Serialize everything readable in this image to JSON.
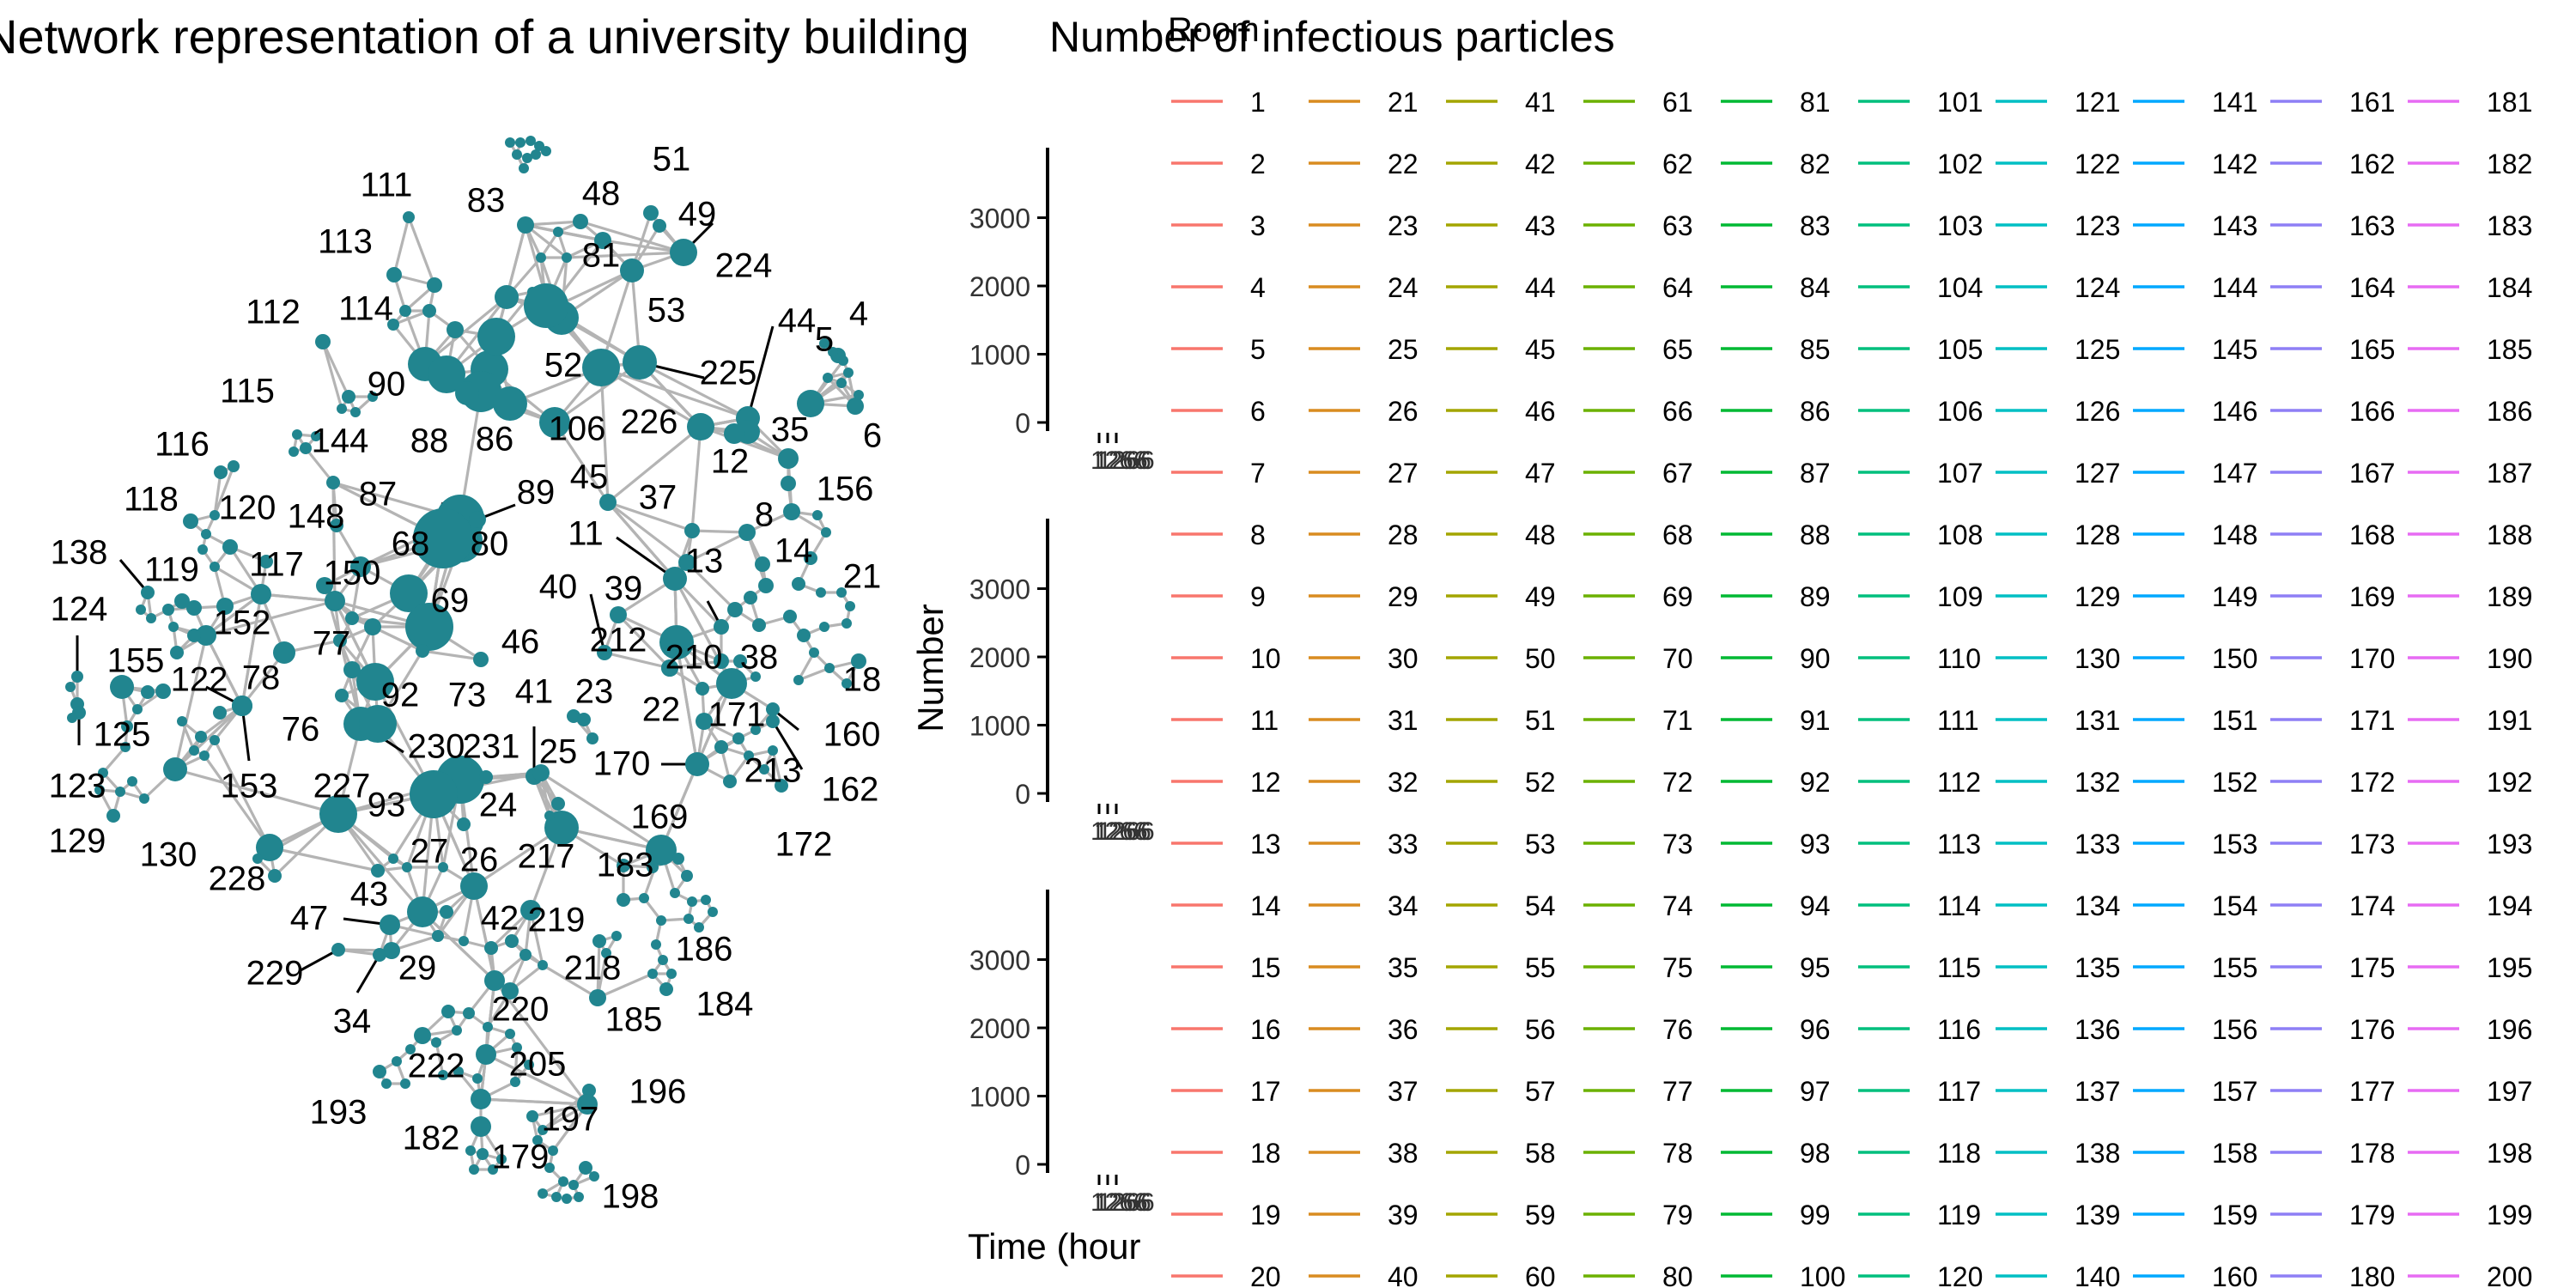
{
  "chart_data": [
    {
      "type": "network",
      "title": "Network representation of a university building",
      "node_color": "#21858F",
      "edge_color": "#B4B4B4",
      "labelled_nodes": [
        "111",
        "83",
        "48",
        "51",
        "49",
        "113",
        "81",
        "224",
        "53",
        "44",
        "4",
        "112",
        "114",
        "52",
        "225",
        "90",
        "5",
        "115",
        "226",
        "35",
        "6",
        "116",
        "144",
        "88",
        "86",
        "106",
        "12",
        "156",
        "118",
        "87",
        "89",
        "45",
        "37",
        "120",
        "148",
        "68",
        "80",
        "11",
        "8",
        "14",
        "138",
        "119",
        "117",
        "150",
        "13",
        "21",
        "69",
        "40",
        "39",
        "124",
        "152",
        "77",
        "46",
        "212",
        "38",
        "155",
        "122",
        "78",
        "92",
        "73",
        "210",
        "18",
        "22",
        "171",
        "160",
        "76",
        "41",
        "23",
        "125",
        "230",
        "231",
        "25",
        "170",
        "213",
        "123",
        "153",
        "227",
        "93",
        "24",
        "162",
        "129",
        "130",
        "228",
        "27",
        "26",
        "217",
        "169",
        "172",
        "183",
        "43",
        "42",
        "219",
        "47",
        "29",
        "218",
        "186",
        "229",
        "34",
        "220",
        "184",
        "185",
        "222",
        "205",
        "196",
        "193",
        "197",
        "182",
        "179",
        "198"
      ]
    },
    {
      "type": "line",
      "title": "Number of infectious particles",
      "ylabel": "Number",
      "xlabel": "Time (hour",
      "panels": 3,
      "y_ticks": [
        0,
        1000,
        2000,
        3000
      ],
      "ylim": [
        0,
        3900
      ],
      "x_tick_text": "1266",
      "legend_title": "Room",
      "legend_placement": "right",
      "series_start": 1,
      "series_rows": 20,
      "series_cols": 10
    }
  ]
}
